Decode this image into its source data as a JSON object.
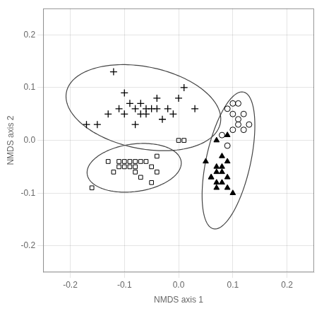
{
  "chart_data": {
    "type": "scatter",
    "xlabel": "NMDS axis 1",
    "ylabel": "NMDS axis 2",
    "xlim": [
      -0.25,
      0.25
    ],
    "ylim": [
      -0.25,
      0.25
    ],
    "xticks": [
      -0.2,
      -0.1,
      {
        "value": 0.0,
        "label": "0.0"
      },
      0.1,
      0.2
    ],
    "yticks": [
      -0.2,
      -0.1,
      {
        "value": 0.0,
        "label": "0.0"
      },
      0.1,
      0.2
    ],
    "grid": true,
    "series": [
      {
        "marker": "plus",
        "color": "#000000",
        "x": [
          -0.17,
          -0.12,
          -0.11,
          -0.13,
          -0.1,
          -0.09,
          -0.08,
          -0.1,
          -0.07,
          -0.06,
          -0.07,
          -0.05,
          -0.04,
          -0.06,
          -0.04,
          -0.03,
          -0.02,
          -0.01,
          0.0,
          0.01,
          0.03,
          -0.15,
          -0.08
        ],
        "values": [
          0.03,
          0.13,
          0.06,
          0.05,
          0.09,
          0.07,
          0.06,
          0.05,
          0.07,
          0.06,
          0.05,
          0.06,
          0.06,
          0.05,
          0.08,
          0.04,
          0.06,
          0.05,
          0.08,
          0.1,
          0.06,
          0.03,
          0.03
        ]
      },
      {
        "marker": "open_square",
        "color": "#000000",
        "x": [
          -0.16,
          -0.13,
          -0.11,
          -0.12,
          -0.11,
          -0.1,
          -0.1,
          -0.09,
          -0.09,
          -0.08,
          -0.08,
          -0.08,
          -0.07,
          -0.07,
          -0.06,
          -0.05,
          -0.04,
          -0.04,
          -0.05,
          0.0,
          0.01
        ],
        "values": [
          -0.09,
          -0.04,
          -0.05,
          -0.06,
          -0.04,
          -0.05,
          -0.04,
          -0.04,
          -0.05,
          -0.05,
          -0.04,
          -0.06,
          -0.07,
          -0.04,
          -0.04,
          -0.05,
          -0.03,
          -0.06,
          -0.08,
          0.0,
          0.0
        ]
      },
      {
        "marker": "open_circle",
        "color": "#000000",
        "x": [
          0.09,
          0.1,
          0.11,
          0.1,
          0.11,
          0.12,
          0.11,
          0.1,
          0.12,
          0.13,
          0.08,
          0.09
        ],
        "values": [
          0.06,
          0.07,
          0.07,
          0.05,
          0.04,
          0.05,
          0.03,
          0.02,
          0.02,
          0.03,
          0.01,
          -0.01
        ]
      },
      {
        "marker": "filled_triangle",
        "color": "#000000",
        "x": [
          0.07,
          0.05,
          0.07,
          0.08,
          0.09,
          0.07,
          0.08,
          0.09,
          0.06,
          0.07,
          0.08,
          0.09,
          0.1,
          0.07,
          0.06,
          0.08,
          0.09
        ],
        "values": [
          0.0,
          -0.04,
          -0.05,
          -0.05,
          -0.04,
          -0.06,
          -0.06,
          -0.07,
          -0.07,
          -0.08,
          -0.08,
          -0.09,
          -0.1,
          -0.09,
          -0.07,
          -0.03,
          0.01
        ]
      }
    ],
    "ellipses": [
      {
        "cx": -0.065,
        "cy": 0.062,
        "width": 0.29,
        "height": 0.155,
        "angle": -12,
        "color": "#444444"
      },
      {
        "cx": -0.082,
        "cy": -0.052,
        "width": 0.175,
        "height": 0.09,
        "angle": 8,
        "color": "#444444"
      },
      {
        "cx": 0.092,
        "cy": -0.038,
        "width": 0.082,
        "height": 0.265,
        "angle": -12,
        "color": "#444444"
      }
    ]
  }
}
